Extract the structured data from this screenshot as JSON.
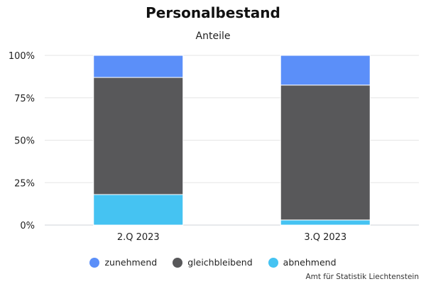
{
  "chart_data": {
    "type": "bar",
    "stacked": true,
    "title": "Personalbestand",
    "subtitle": "Anteile",
    "categories": [
      "2.Q 2023",
      "3.Q 2023"
    ],
    "series": [
      {
        "name": "abnehmend",
        "color": "#45c3f2",
        "values": [
          18,
          3
        ]
      },
      {
        "name": "gleichbleibend",
        "color": "#58585a",
        "values": [
          69,
          79.5
        ]
      },
      {
        "name": "zunehmend",
        "color": "#5b8ff9",
        "values": [
          13,
          17.5
        ]
      }
    ],
    "ylim": [
      0,
      100
    ],
    "yticks": [
      "0%",
      "25%",
      "50%",
      "75%",
      "100%"
    ],
    "ytick_values": [
      0,
      25,
      50,
      75,
      100
    ],
    "grid": true,
    "legend_position": "bottom",
    "legend_order": [
      "zunehmend",
      "gleichbleibend",
      "abnehmend"
    ],
    "credit": "Amt für Statistik Liechtenstein"
  }
}
